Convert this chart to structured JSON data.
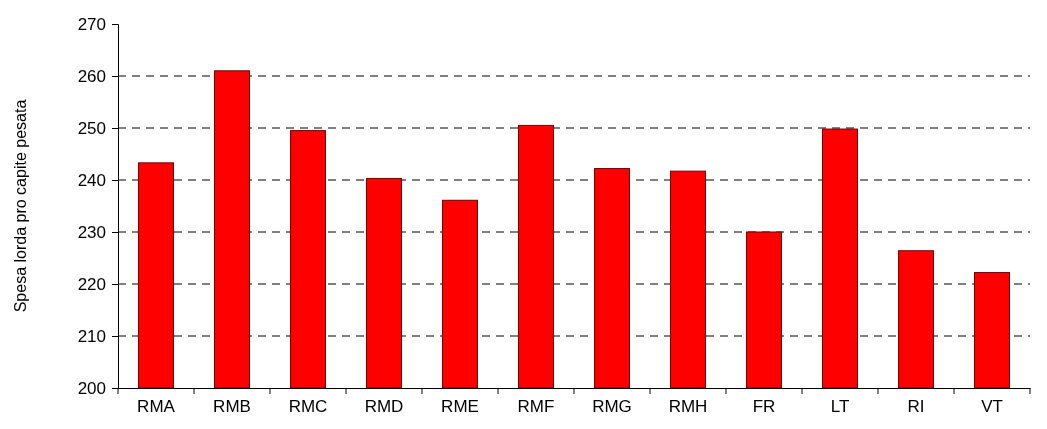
{
  "chart_data": {
    "type": "bar",
    "ylabel": "Spesa lorda pro capite pesata",
    "categories": [
      "RMA",
      "RMB",
      "RMC",
      "RMD",
      "RME",
      "RMF",
      "RMG",
      "RMH",
      "FR",
      "LT",
      "RI",
      "VT"
    ],
    "values": [
      243.3,
      261.0,
      249.5,
      240.3,
      236.1,
      250.5,
      242.2,
      241.7,
      230.0,
      249.8,
      226.4,
      222.2
    ],
    "color": "#ff0000",
    "ylim": [
      200,
      270
    ],
    "yticks": [
      200,
      210,
      220,
      230,
      240,
      250,
      260,
      270
    ],
    "grid": "y"
  }
}
